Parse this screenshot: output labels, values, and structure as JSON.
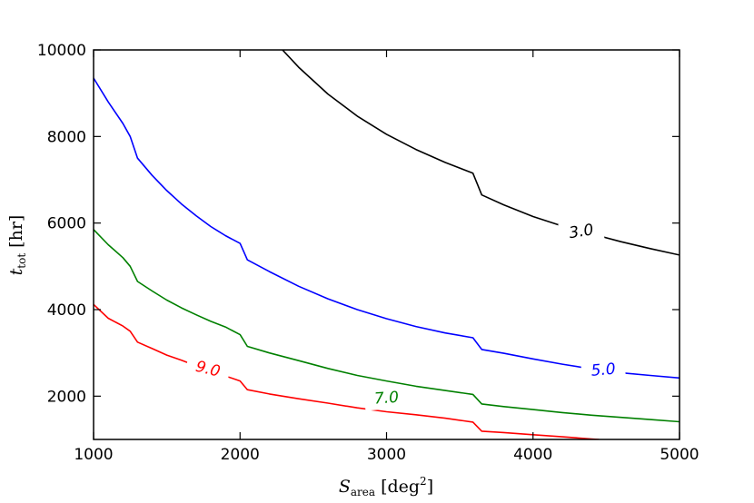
{
  "chart_data": {
    "type": "line",
    "title": "",
    "xlabel": {
      "main": "S",
      "sub": "area",
      "unit": "[deg",
      "sup": "2",
      "close": "]"
    },
    "ylabel": {
      "main": "t",
      "sub": "tot",
      "unit": "[hr]"
    },
    "xlim": [
      1000,
      5000
    ],
    "ylim": [
      1000,
      10000
    ],
    "xticks": [
      1000,
      2000,
      3000,
      4000,
      5000
    ],
    "yticks": [
      2000,
      4000,
      6000,
      8000,
      10000
    ],
    "grid": false,
    "series": [
      {
        "name": "3.0",
        "color": "#000000",
        "label_at": [
          4330,
          5800
        ],
        "label_angle": -9,
        "points": [
          [
            2290,
            10000
          ],
          [
            2400,
            9600
          ],
          [
            2600,
            8980
          ],
          [
            2800,
            8470
          ],
          [
            3000,
            8050
          ],
          [
            3200,
            7700
          ],
          [
            3400,
            7400
          ],
          [
            3590,
            7150
          ],
          [
            3620,
            6900
          ],
          [
            3650,
            6650
          ],
          [
            3800,
            6420
          ],
          [
            4000,
            6150
          ],
          [
            4200,
            5930
          ],
          [
            4400,
            5750
          ],
          [
            4600,
            5570
          ],
          [
            4800,
            5410
          ],
          [
            5000,
            5260
          ]
        ]
      },
      {
        "name": "5.0",
        "color": "#0000ff",
        "label_at": [
          4480,
          2600
        ],
        "label_angle": -5,
        "points": [
          [
            1000,
            9350
          ],
          [
            1100,
            8800
          ],
          [
            1200,
            8300
          ],
          [
            1250,
            8000
          ],
          [
            1300,
            7500
          ],
          [
            1400,
            7100
          ],
          [
            1500,
            6750
          ],
          [
            1600,
            6440
          ],
          [
            1700,
            6170
          ],
          [
            1800,
            5920
          ],
          [
            1900,
            5710
          ],
          [
            2000,
            5530
          ],
          [
            2050,
            5150
          ],
          [
            2200,
            4880
          ],
          [
            2400,
            4540
          ],
          [
            2600,
            4250
          ],
          [
            2800,
            4000
          ],
          [
            3000,
            3790
          ],
          [
            3200,
            3610
          ],
          [
            3400,
            3460
          ],
          [
            3590,
            3350
          ],
          [
            3650,
            3080
          ],
          [
            3800,
            2990
          ],
          [
            4000,
            2860
          ],
          [
            4200,
            2740
          ],
          [
            4400,
            2630
          ],
          [
            4600,
            2540
          ],
          [
            4800,
            2480
          ],
          [
            5000,
            2420
          ]
        ]
      },
      {
        "name": "7.0",
        "color": "#008000",
        "label_at": [
          3000,
          1950
        ],
        "label_angle": -4,
        "points": [
          [
            1000,
            5850
          ],
          [
            1100,
            5500
          ],
          [
            1200,
            5200
          ],
          [
            1250,
            5000
          ],
          [
            1300,
            4650
          ],
          [
            1400,
            4430
          ],
          [
            1500,
            4220
          ],
          [
            1600,
            4040
          ],
          [
            1700,
            3880
          ],
          [
            1800,
            3730
          ],
          [
            1900,
            3600
          ],
          [
            2000,
            3420
          ],
          [
            2050,
            3150
          ],
          [
            2200,
            3000
          ],
          [
            2400,
            2820
          ],
          [
            2600,
            2640
          ],
          [
            2800,
            2480
          ],
          [
            3000,
            2350
          ],
          [
            3200,
            2230
          ],
          [
            3400,
            2130
          ],
          [
            3590,
            2040
          ],
          [
            3650,
            1820
          ],
          [
            3800,
            1760
          ],
          [
            4000,
            1690
          ],
          [
            4200,
            1620
          ],
          [
            4400,
            1560
          ],
          [
            4600,
            1510
          ],
          [
            4800,
            1460
          ],
          [
            5000,
            1410
          ]
        ]
      },
      {
        "name": "9.0",
        "color": "#ff0000",
        "label_at": [
          1780,
          2620
        ],
        "label_angle": 14,
        "points": [
          [
            1000,
            4120
          ],
          [
            1100,
            3800
          ],
          [
            1200,
            3620
          ],
          [
            1250,
            3500
          ],
          [
            1300,
            3250
          ],
          [
            1400,
            3100
          ],
          [
            1500,
            2950
          ],
          [
            1600,
            2830
          ],
          [
            1700,
            2700
          ],
          [
            2000,
            2350
          ],
          [
            2050,
            2150
          ],
          [
            2200,
            2050
          ],
          [
            2400,
            1940
          ],
          [
            2600,
            1840
          ],
          [
            2800,
            1730
          ],
          [
            3000,
            1640
          ],
          [
            3200,
            1570
          ],
          [
            3400,
            1490
          ],
          [
            3590,
            1400
          ],
          [
            3650,
            1190
          ],
          [
            3800,
            1160
          ],
          [
            4000,
            1110
          ],
          [
            4200,
            1060
          ],
          [
            4400,
            1010
          ],
          [
            4450,
            1000
          ]
        ]
      }
    ]
  }
}
